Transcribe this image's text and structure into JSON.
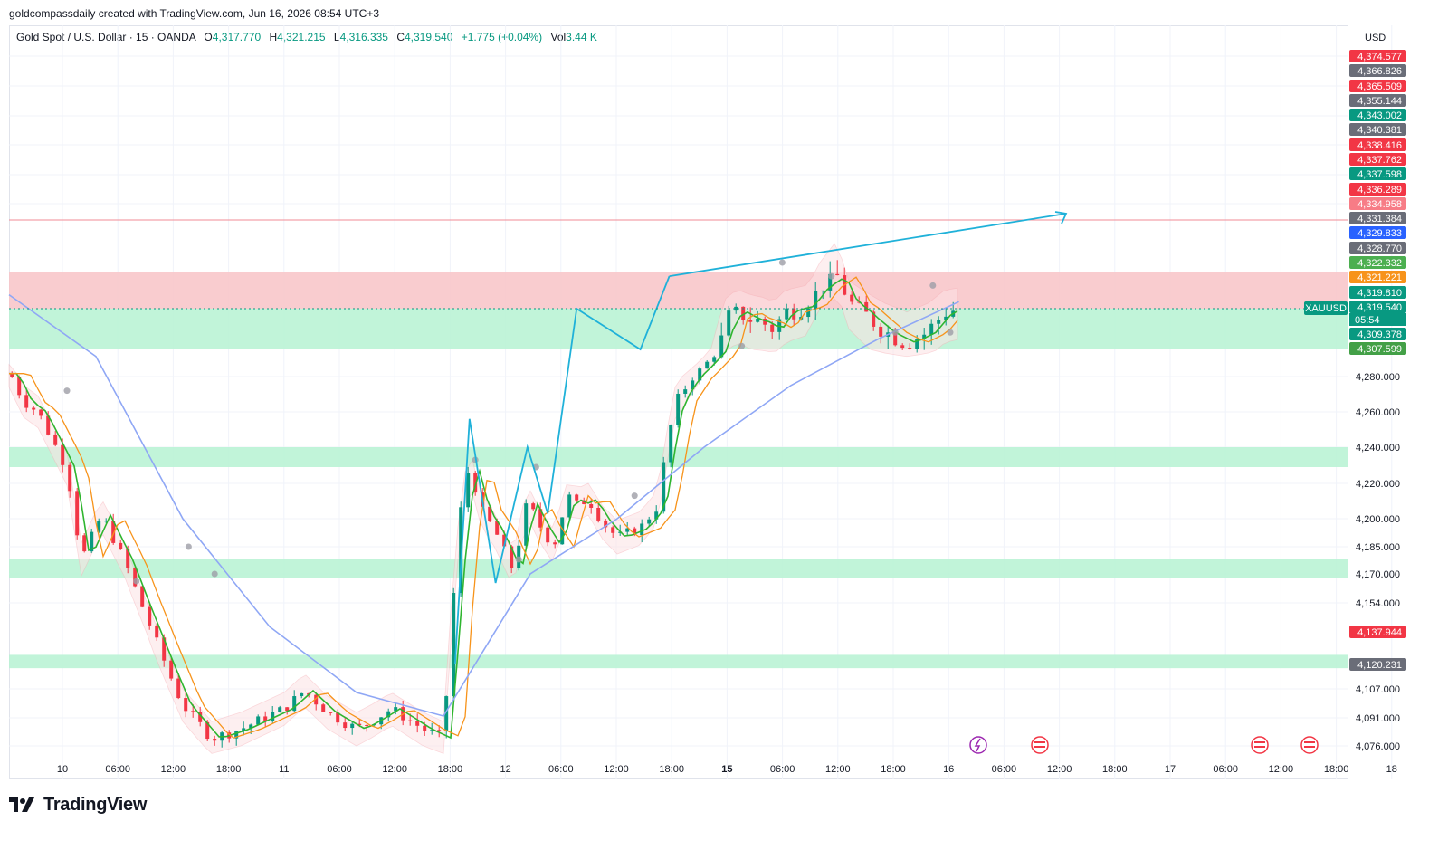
{
  "credit": "goldcompassdaily created with TradingView.com, Jun 16, 2026 08:54 UTC+3",
  "header": {
    "symbol": "Gold Spot / U.S. Dollar · 15 · OANDA",
    "o_label": "O",
    "o_value": "4,317.770",
    "h_label": "H",
    "h_value": "4,321.215",
    "l_label": "L",
    "l_value": "4,316.335",
    "c_label": "C",
    "c_value": "4,319.540",
    "change": "+1.775 (+0.04%)",
    "vol_label": "Vol",
    "vol_value": "3.44 K"
  },
  "currency": "USD",
  "brand": "TradingView",
  "colors": {
    "up": "#089981",
    "down": "#f23645",
    "ema_fast": "#2fb52f",
    "ema_mid": "#f7931a",
    "ma_slow": "#8fa7f5",
    "zone_green": "#b6f2d2",
    "zone_red": "#f8c3c7",
    "pattern": "#1fb1d9",
    "label_red": "#f23645",
    "label_gray": "#6a6d78",
    "label_green": "#089981"
  },
  "chart_data": {
    "type": "candlestick",
    "title": "Gold Spot / U.S. Dollar",
    "interval": "15",
    "y_ticks": [
      "4,280.000",
      "4,260.000",
      "4,240.000",
      "4,220.000",
      "4,200.000",
      "4,185.000",
      "4,170.000",
      "4,154.000",
      "4,107.000",
      "4,091.000",
      "4,076.000"
    ],
    "x_ticks": [
      "10",
      "06:00",
      "12:00",
      "18:00",
      "11",
      "06:00",
      "12:00",
      "18:00",
      "12",
      "06:00",
      "12:00",
      "18:00",
      "15",
      "06:00",
      "12:00",
      "18:00",
      "16",
      "06:00",
      "12:00",
      "18:00",
      "17",
      "06:00",
      "12:00",
      "18:00",
      "18"
    ],
    "price_labels": [
      {
        "value": "4,374.577",
        "color": "red"
      },
      {
        "value": "4,366.826",
        "color": "gray"
      },
      {
        "value": "4,365.509",
        "color": "red"
      },
      {
        "value": "4,355.144",
        "color": "gray"
      },
      {
        "value": "4,343.002",
        "color": "green"
      },
      {
        "value": "4,340.381",
        "color": "gray"
      },
      {
        "value": "4,338.416",
        "color": "red"
      },
      {
        "value": "4,337.762",
        "color": "red"
      },
      {
        "value": "4,337.598",
        "color": "green"
      },
      {
        "value": "4,336.289",
        "color": "red"
      },
      {
        "value": "4,334.958",
        "color": "lightred"
      },
      {
        "value": "4,331.384",
        "color": "gray"
      },
      {
        "value": "4,329.833",
        "color": "blue"
      },
      {
        "value": "4,328.770",
        "color": "gray"
      },
      {
        "value": "4,322.332",
        "color": "lime"
      },
      {
        "value": "4,321.221",
        "color": "orange"
      },
      {
        "value": "4,319.810",
        "color": "green"
      },
      {
        "value": "4,319.540",
        "color": "green"
      },
      {
        "value": "4,309.378",
        "color": "green"
      },
      {
        "value": "4,307.599",
        "color": "limegreen"
      },
      {
        "value": "4,137.944",
        "color": "red"
      },
      {
        "value": "4,120.231",
        "color": "gray"
      }
    ],
    "symbol_tag": "XAUUSD",
    "countdown": "05:54",
    "last_price": "4,319.540",
    "zones": [
      {
        "kind": "resistance",
        "low": 4319,
        "high": 4335
      },
      {
        "kind": "support",
        "low": 4307,
        "high": 4319
      },
      {
        "kind": "support",
        "low": 4229,
        "high": 4240
      },
      {
        "kind": "support",
        "low": 4168,
        "high": 4178
      },
      {
        "kind": "support",
        "low": 4118,
        "high": 4125
      }
    ],
    "pattern_path": [
      [
        15.4,
        4120
      ],
      [
        15.9,
        4256
      ],
      [
        16.8,
        4165
      ],
      [
        17.9,
        4240
      ],
      [
        18.6,
        4203
      ],
      [
        19.6,
        4319
      ],
      [
        21.8,
        4307
      ],
      [
        22.8,
        4333
      ]
    ],
    "key_points": [
      [
        0,
        4283
      ],
      [
        0.5,
        4266
      ],
      [
        1.0,
        4260
      ],
      [
        2.0,
        4228
      ],
      [
        2.5,
        4178
      ],
      [
        3.2,
        4202
      ],
      [
        4.0,
        4177
      ],
      [
        5.0,
        4135
      ],
      [
        6.0,
        4098
      ],
      [
        7.0,
        4080
      ],
      [
        8.0,
        4085
      ],
      [
        9.5,
        4096
      ],
      [
        10.2,
        4106
      ],
      [
        11.0,
        4094
      ],
      [
        12.0,
        4085
      ],
      [
        12.6,
        4090
      ],
      [
        13.2,
        4096
      ],
      [
        14.3,
        4085
      ],
      [
        15.0,
        4080
      ],
      [
        15.3,
        4150
      ],
      [
        15.6,
        4205
      ],
      [
        15.9,
        4230
      ],
      [
        16.3,
        4205
      ],
      [
        16.8,
        4193
      ],
      [
        17.4,
        4172
      ],
      [
        17.9,
        4210
      ],
      [
        18.3,
        4197
      ],
      [
        18.8,
        4185
      ],
      [
        19.3,
        4213
      ],
      [
        19.6,
        4208
      ],
      [
        20.0,
        4211
      ],
      [
        20.5,
        4198
      ],
      [
        21.0,
        4190
      ],
      [
        21.8,
        4195
      ],
      [
        22.4,
        4207
      ],
      [
        22.6,
        4230
      ],
      [
        23.0,
        4265
      ],
      [
        23.8,
        4285
      ],
      [
        24.3,
        4300
      ],
      [
        24.8,
        4316
      ],
      [
        25.2,
        4318
      ],
      [
        25.6,
        4316
      ],
      [
        26.0,
        4315
      ],
      [
        26.4,
        4313
      ],
      [
        26.8,
        4318
      ],
      [
        27.5,
        4320
      ],
      [
        28.0,
        4328
      ],
      [
        28.6,
        4333
      ],
      [
        29.0,
        4322
      ],
      [
        29.6,
        4317
      ],
      [
        30.3,
        4312
      ],
      [
        31.0,
        4309
      ],
      [
        31.7,
        4312
      ],
      [
        32.3,
        4318
      ],
      [
        32.8,
        4319
      ]
    ]
  }
}
